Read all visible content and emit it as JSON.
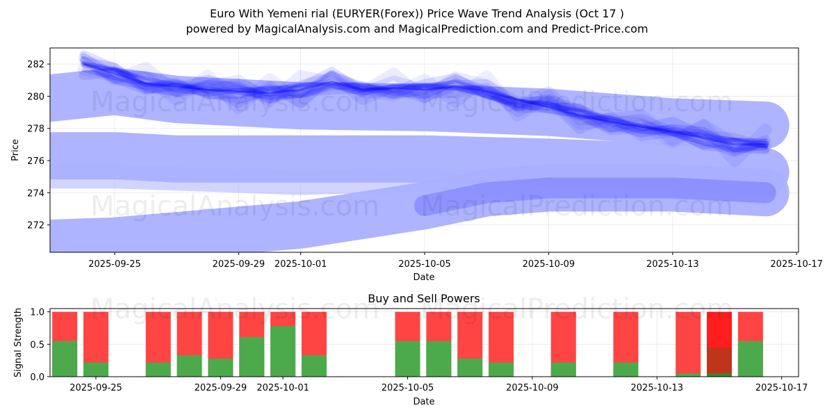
{
  "header": {
    "title": "Euro With Yemeni rial (EURYER(Forex)) Price Wave Trend Analysis (Oct 17 )",
    "subtitle": "powered by MagicalAnalysis.com and MagicalPrediction.com and Predict-Price.com"
  },
  "watermarks": {
    "left": "MagicalAnalysis.com",
    "right": "MagicalPrediction.com"
  },
  "colors": {
    "wave": "#0000ff",
    "band": "#aab0ff",
    "buy": "#4caa4c",
    "sell": "#ff4444",
    "sell_strong": "#ff1111",
    "overlap": "#c0341c"
  },
  "chart_data": [
    {
      "type": "area",
      "title": "",
      "xlabel": "Date",
      "ylabel": "Price",
      "ylim": [
        270.3,
        283.0
      ],
      "xlim": [
        "2025-09-22",
        "2025-10-17"
      ],
      "yticks": [
        272,
        274,
        276,
        278,
        280,
        282
      ],
      "xticks": [
        "2025-09-25",
        "2025-09-29",
        "2025-10-01",
        "2025-10-05",
        "2025-10-09",
        "2025-10-13",
        "2025-10-17"
      ],
      "grid": true,
      "wave_center": {
        "x": [
          "2025-09-24",
          "2025-09-25",
          "2025-09-26",
          "2025-09-27",
          "2025-09-28",
          "2025-09-29",
          "2025-09-30",
          "2025-10-01",
          "2025-10-02",
          "2025-10-03",
          "2025-10-04",
          "2025-10-05",
          "2025-10-06",
          "2025-10-07",
          "2025-10-08",
          "2025-10-09",
          "2025-10-10",
          "2025-10-11",
          "2025-10-12",
          "2025-10-13",
          "2025-10-14",
          "2025-10-15",
          "2025-10-16"
        ],
        "values": [
          282.0,
          281.4,
          280.8,
          280.6,
          280.4,
          280.3,
          280.2,
          280.4,
          280.9,
          280.4,
          280.5,
          280.4,
          280.6,
          280.3,
          279.8,
          279.3,
          278.8,
          278.4,
          278.1,
          277.8,
          277.4,
          277.0,
          277.0
        ]
      },
      "bands": [
        {
          "name": "wave-band-upper",
          "x": [
            "2025-09-22",
            "2025-09-25",
            "2025-09-27",
            "2025-10-01",
            "2025-10-05",
            "2025-10-09",
            "2025-10-13",
            "2025-10-16"
          ],
          "values": [
            279.7,
            280.3,
            279.8,
            279.4,
            279.3,
            279.0,
            278.4,
            278.2
          ]
        },
        {
          "name": "wave-band-middle",
          "x": [
            "2025-09-22",
            "2025-09-25",
            "2025-09-27",
            "2025-10-01",
            "2025-10-05",
            "2025-10-09",
            "2025-10-13",
            "2025-10-16"
          ],
          "values": [
            276.3,
            276.3,
            276.1,
            276.1,
            276.1,
            275.9,
            275.6,
            275.3
          ]
        },
        {
          "name": "wave-band-lower-a",
          "x": [
            "2025-09-22",
            "2025-09-25",
            "2025-09-28",
            "2025-10-01",
            "2025-10-03",
            "2025-10-05",
            "2025-10-07",
            "2025-10-09",
            "2025-10-13",
            "2025-10-16"
          ],
          "values": [
            270.8,
            271.0,
            271.5,
            272.0,
            272.6,
            273.2,
            274.0,
            274.3,
            274.3,
            274.0
          ]
        },
        {
          "name": "wave-band-lower-b",
          "x": [
            "2025-09-22",
            "2025-09-25",
            "2025-09-28",
            "2025-10-01",
            "2025-10-05",
            "2025-10-09",
            "2025-10-13",
            "2025-10-16"
          ],
          "values": [
            275.0,
            275.0,
            274.8,
            274.6,
            274.8,
            274.4,
            274.4,
            274.0
          ]
        }
      ]
    },
    {
      "type": "bar",
      "title": "Buy and Sell Powers",
      "xlabel": "Date",
      "ylabel": "Signal Strength",
      "ylim": [
        0,
        1.05
      ],
      "yticks": [
        0.0,
        0.5,
        1.0
      ],
      "ytick_labels": [
        "0.0",
        "0.5",
        "1.0"
      ],
      "xticks": [
        "2025-09-25",
        "2025-09-29",
        "2025-10-01",
        "2025-10-05",
        "2025-10-09",
        "2025-10-13",
        "2025-10-17"
      ],
      "categories": [
        "2025-09-24",
        "2025-09-25",
        "2025-09-27",
        "2025-09-28",
        "2025-09-29",
        "2025-09-30",
        "2025-10-01",
        "2025-10-02",
        "2025-10-05",
        "2025-10-06",
        "2025-10-07",
        "2025-10-08",
        "2025-10-10",
        "2025-10-12",
        "2025-10-14",
        "2025-10-15",
        "2025-10-16"
      ],
      "series": [
        {
          "name": "Buy",
          "values": [
            0.55,
            0.22,
            0.22,
            0.33,
            0.28,
            0.61,
            0.78,
            0.33,
            0.55,
            0.55,
            0.28,
            0.22,
            0.22,
            0.22,
            0.05,
            0.45,
            0.55
          ]
        },
        {
          "name": "Sell",
          "values": [
            1,
            1,
            1,
            1,
            1,
            1,
            1,
            1,
            1,
            1,
            1,
            1,
            1,
            1,
            1,
            1,
            1
          ]
        }
      ],
      "strong_sell_index": 15
    }
  ]
}
